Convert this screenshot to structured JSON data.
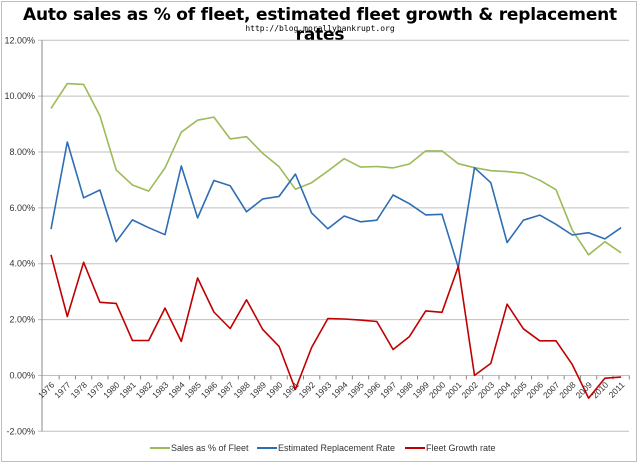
{
  "chart_data": {
    "type": "line",
    "title": "Auto sales as % of fleet, estimated fleet growth & replacement rates",
    "subtitle": "http://blog.morallybankrupt.org",
    "xlabel": "",
    "ylabel": "",
    "ylim": [
      -0.02,
      0.12
    ],
    "yticks": [
      -0.02,
      0.0,
      0.02,
      0.04,
      0.06,
      0.08,
      0.1,
      0.12
    ],
    "ytick_labels": [
      "-2.00%",
      "0.00%",
      "2.00%",
      "4.00%",
      "6.00%",
      "8.00%",
      "10.00%",
      "12.00%"
    ],
    "grid": true,
    "legend_position": "bottom",
    "x": [
      "1976",
      "1977",
      "1978",
      "1979",
      "1980",
      "1981",
      "1982",
      "1983",
      "1984",
      "1985",
      "1986",
      "1987",
      "1988",
      "1989",
      "1990",
      "1991",
      "1992",
      "1993",
      "1994",
      "1995",
      "1996",
      "1997",
      "1998",
      "1999",
      "2000",
      "2001",
      "2002",
      "2003",
      "2004",
      "2005",
      "2006",
      "2007",
      "2008",
      "2009",
      "2010",
      "2011"
    ],
    "series": [
      {
        "name": "Sales as % of Fleet",
        "color": "#9bbb59",
        "values": [
          0.0956,
          0.1045,
          0.1042,
          0.093,
          0.0736,
          0.0682,
          0.066,
          0.0743,
          0.0871,
          0.0914,
          0.0925,
          0.0847,
          0.0855,
          0.0795,
          0.0747,
          0.0667,
          0.069,
          0.0732,
          0.0776,
          0.0746,
          0.0748,
          0.0743,
          0.0757,
          0.0804,
          0.0804,
          0.0758,
          0.0744,
          0.0733,
          0.073,
          0.0724,
          0.0699,
          0.0665,
          0.052,
          0.0432,
          0.0479,
          0.0439
        ]
      },
      {
        "name": "Estimated Replacement Rate",
        "color": "#2e6db4",
        "values": [
          0.0524,
          0.0836,
          0.0636,
          0.0664,
          0.0479,
          0.0557,
          0.0529,
          0.0504,
          0.075,
          0.0564,
          0.0698,
          0.0679,
          0.0586,
          0.0632,
          0.0641,
          0.0721,
          0.0582,
          0.0525,
          0.0571,
          0.055,
          0.0556,
          0.0646,
          0.0615,
          0.0575,
          0.0577,
          0.0387,
          0.0744,
          0.069,
          0.0476,
          0.0556,
          0.0574,
          0.0541,
          0.0503,
          0.0511,
          0.0489,
          0.0529
        ]
      },
      {
        "name": "Fleet Growth rate",
        "color": "#c00000",
        "values": [
          0.0432,
          0.0211,
          0.0405,
          0.0262,
          0.0258,
          0.0125,
          0.0125,
          0.0241,
          0.0122,
          0.0349,
          0.0227,
          0.0168,
          0.0271,
          0.0164,
          0.0104,
          -0.005,
          0.01,
          0.0204,
          0.0202,
          0.0198,
          0.0193,
          0.0093,
          0.0139,
          0.0231,
          0.0226,
          0.039,
          0.0,
          0.0043,
          0.0255,
          0.0167,
          0.0124,
          0.0124,
          0.0039,
          -0.0081,
          -0.001,
          -0.0006
        ]
      }
    ]
  },
  "colors": {
    "grid": "#bfbfbf",
    "axis": "#888888",
    "text": "#333333"
  }
}
